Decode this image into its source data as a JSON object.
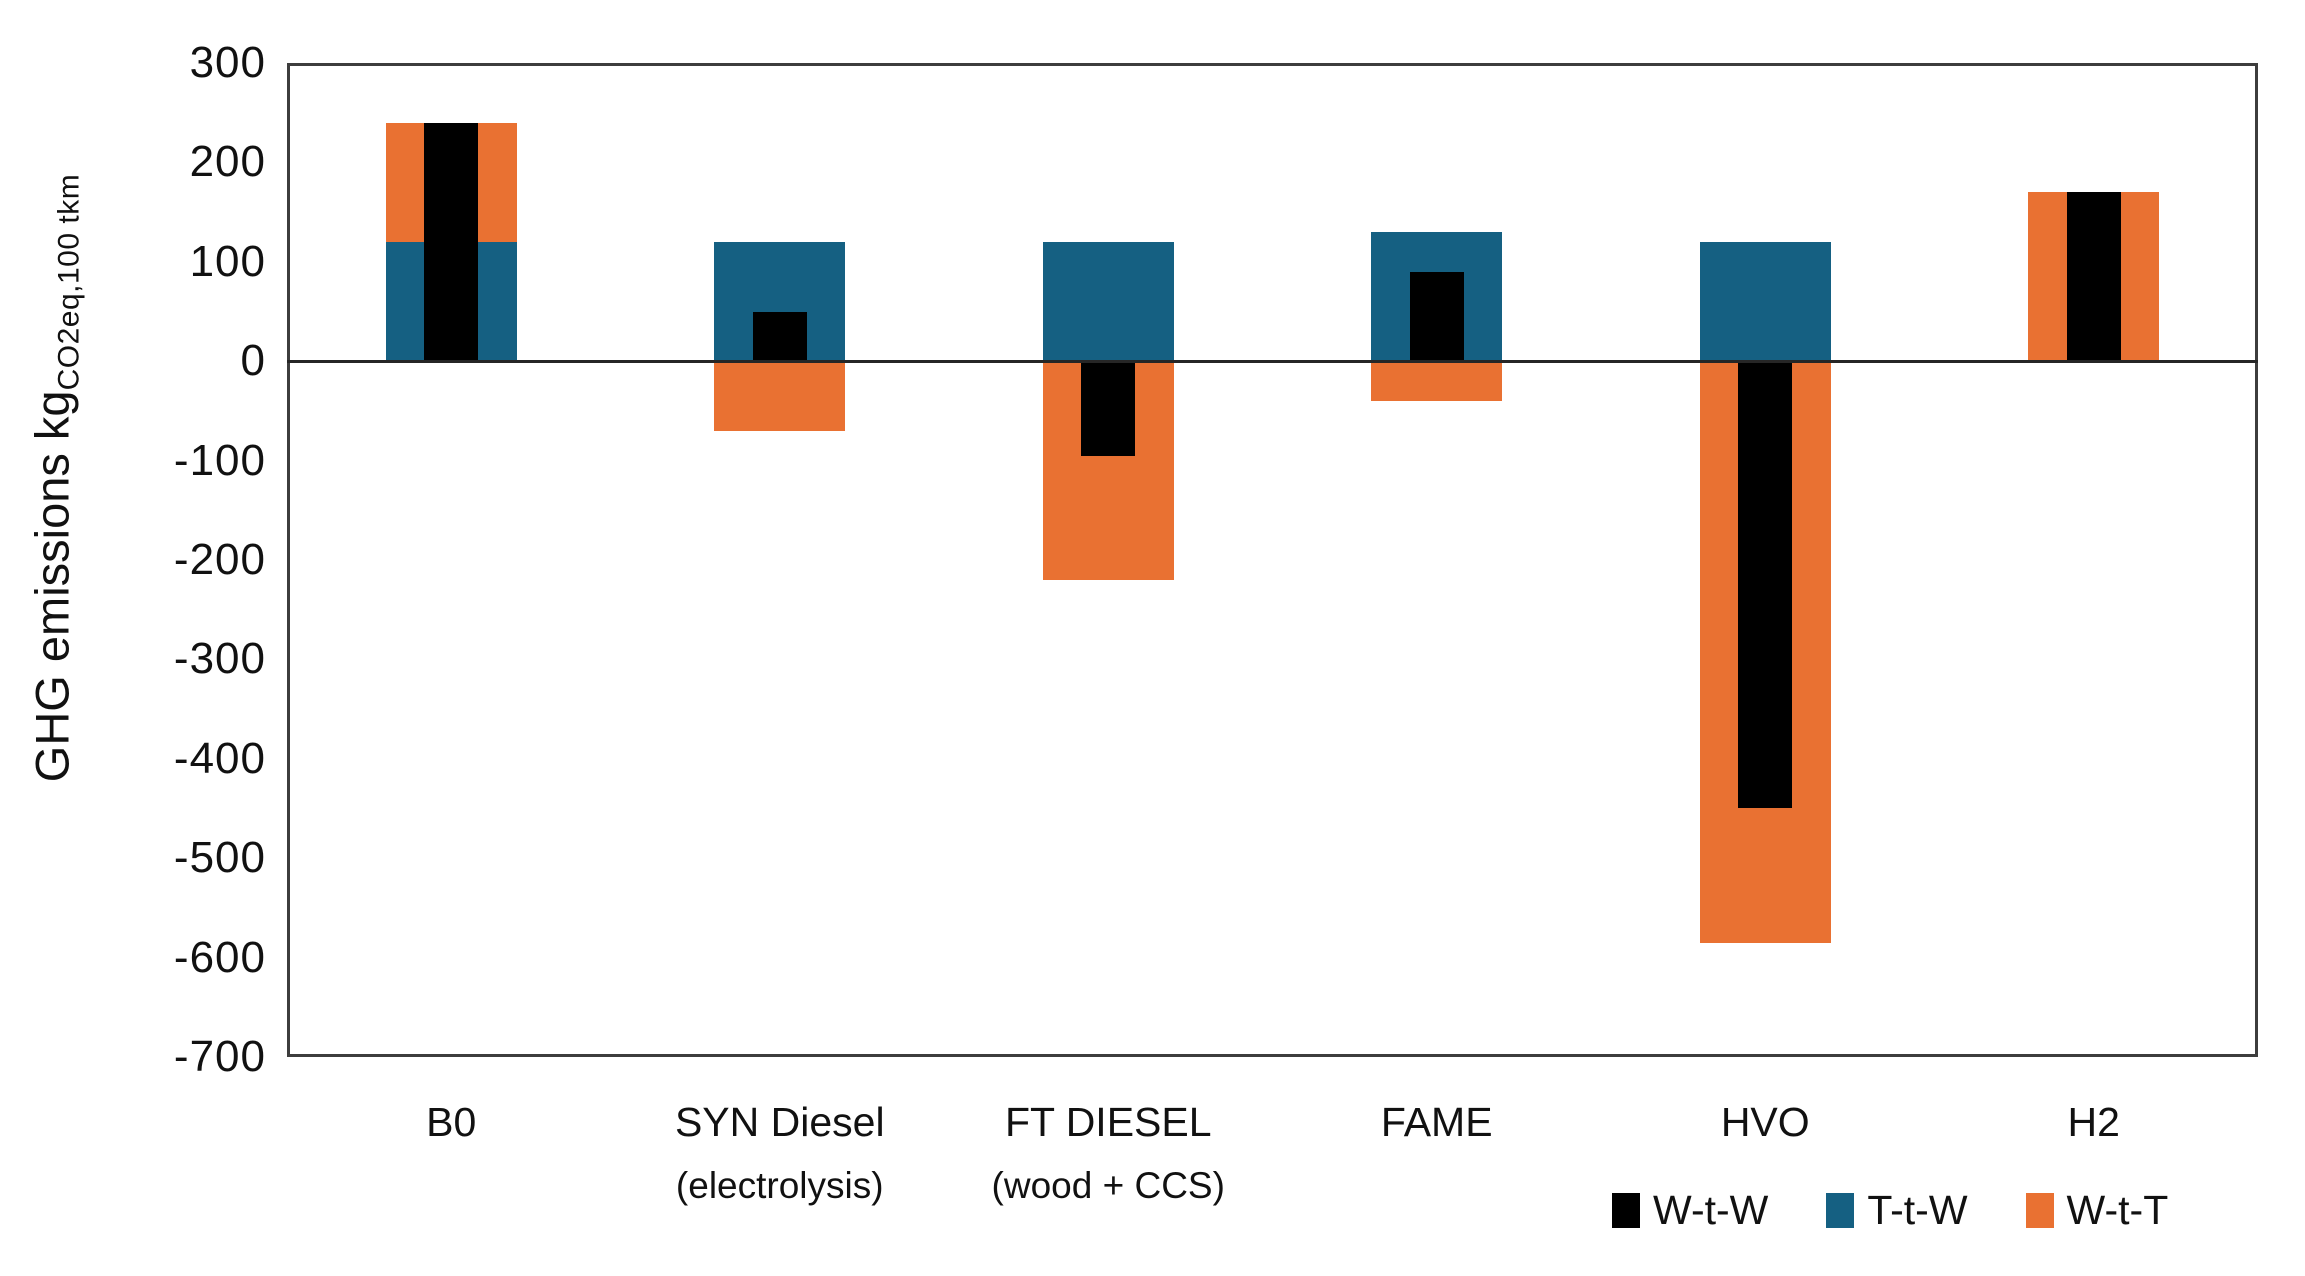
{
  "y_axis": {
    "title_main": "GHG emissions kg",
    "title_sub": "CO2eq,100 tkm",
    "tick_labels": [
      "300",
      "200",
      "100",
      "0",
      "-100",
      "-200",
      "-300",
      "-400",
      "-500",
      "-600",
      "-700"
    ]
  },
  "categories": [
    {
      "label": "B0",
      "sublabel": ""
    },
    {
      "label": "SYN Diesel",
      "sublabel": "(electrolysis)"
    },
    {
      "label": "FT DIESEL",
      "sublabel": "(wood + CCS)"
    },
    {
      "label": "FAME",
      "sublabel": ""
    },
    {
      "label": "HVO",
      "sublabel": ""
    },
    {
      "label": "H2",
      "sublabel": ""
    }
  ],
  "legend": [
    {
      "label": "W-t-W",
      "series": "wtw",
      "color": "#000000"
    },
    {
      "label": "T-t-W",
      "series": "ttw",
      "color": "#156082"
    },
    {
      "label": "W-t-T",
      "series": "wtt",
      "color": "#E97132"
    }
  ],
  "colors": {
    "wtw": "#000000",
    "ttw": "#156082",
    "wtt": "#E97132",
    "frame": "#3d3d3d",
    "zero_line": "#262626",
    "background": "#ffffff"
  },
  "chart_data": {
    "type": "bar",
    "title": "",
    "xlabel": "",
    "ylabel": "GHG emissions kg CO2eq, 100 tkm",
    "ylim": [
      -700,
      300
    ],
    "ytick_step": 100,
    "grid": false,
    "legend_position": "bottom-right",
    "categories": [
      "B0",
      "SYN Diesel (electrolysis)",
      "FT DIESEL (wood + CCS)",
      "FAME",
      "HVO",
      "H2"
    ],
    "series": [
      {
        "name": "W-t-W",
        "color": "#000000",
        "values": [
          240,
          50,
          -95,
          90,
          -450,
          170
        ]
      },
      {
        "name": "T-t-W",
        "color": "#156082",
        "values": [
          120,
          120,
          120,
          130,
          120,
          0
        ]
      },
      {
        "name": "W-t-T",
        "color": "#E97132",
        "values": [
          120,
          -70,
          -220,
          -40,
          -585,
          170
        ]
      }
    ],
    "structure_note": "Wide bar = T-t-W (teal, 0 to value) with W-t-T (orange) stacked above when positive or drawn below zero when negative; narrow black W-t-W bar overlaid at bar center from 0 to its value."
  }
}
